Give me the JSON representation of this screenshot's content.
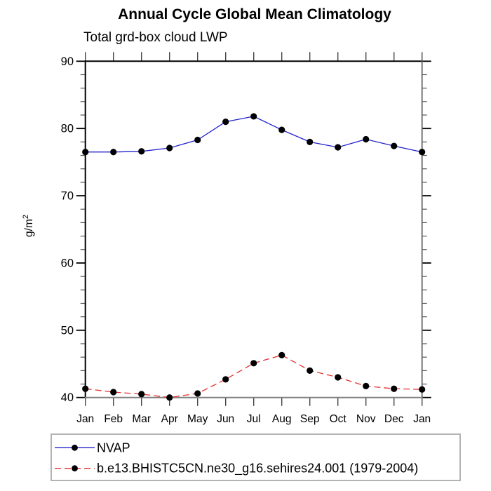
{
  "title": "Annual Cycle Global Mean Climatology",
  "subtitle": "Total grd-box cloud LWP",
  "chart_data": {
    "type": "line",
    "x_categories": [
      "Jan",
      "Feb",
      "Mar",
      "Apr",
      "May",
      "Jun",
      "Jul",
      "Aug",
      "Sep",
      "Oct",
      "Nov",
      "Dec",
      "Jan"
    ],
    "xlabel": "",
    "ylabel": "g/m²",
    "ylim": [
      40,
      90
    ],
    "ytick_values": [
      40,
      50,
      60,
      70,
      80,
      90
    ],
    "ytick_labels": [
      "40",
      "50",
      "60",
      "70",
      "80",
      "90"
    ],
    "ytick_minor_step": 2,
    "grid": false,
    "legend_position": "bottom-left-box",
    "series": [
      {
        "name": "NVAP",
        "line_color": "#2222cc",
        "line_style": "solid",
        "marker": "filled-circle",
        "marker_color": "#000000",
        "values": [
          76.5,
          76.5,
          76.6,
          77.1,
          78.3,
          81.0,
          81.8,
          79.8,
          78.0,
          77.2,
          78.4,
          77.4,
          76.5
        ]
      },
      {
        "name": "b.e13.BHISTC5CN.ne30_g16.sehires24.001 (1979-2004)",
        "line_color": "#e63232",
        "line_style": "dashed",
        "marker": "filled-circle",
        "marker_color": "#000000",
        "values": [
          41.3,
          40.8,
          40.5,
          40.0,
          40.6,
          42.7,
          45.1,
          46.3,
          44.0,
          43.0,
          41.7,
          41.3,
          41.2
        ]
      }
    ]
  }
}
